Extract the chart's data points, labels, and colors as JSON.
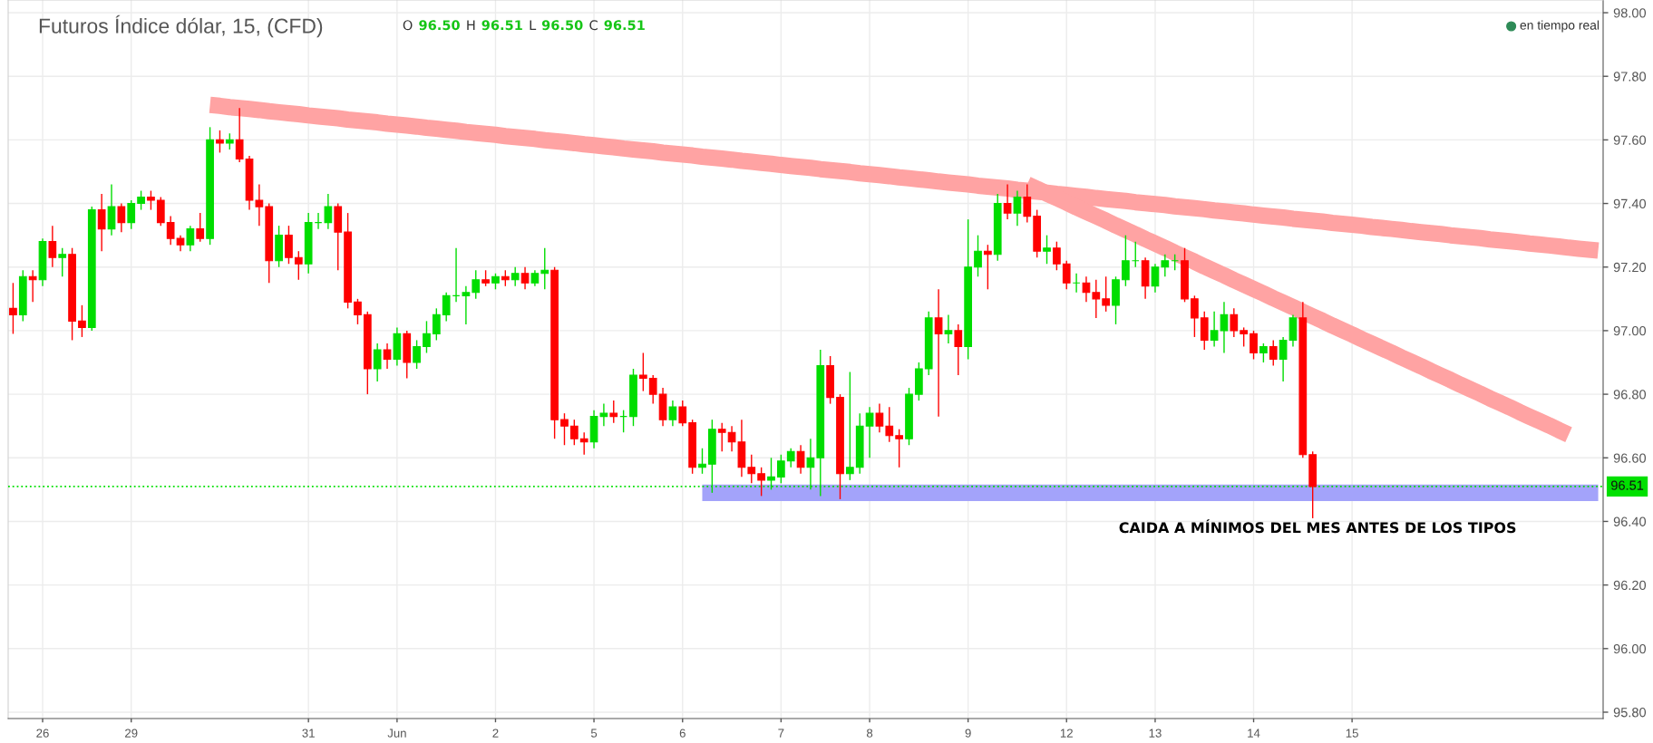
{
  "chart_data": {
    "type": "candlestick",
    "title": "Futuros Índice dólar, 15, (CFD)",
    "categories": [
      null,
      null,
      null,
      "26",
      null,
      null,
      null,
      null,
      null,
      null,
      null,
      null,
      "29",
      null,
      null,
      null,
      null,
      null,
      null,
      null,
      null,
      null,
      null,
      null,
      null,
      null,
      null,
      null,
      null,
      null,
      "31",
      null,
      null,
      null,
      null,
      null,
      null,
      null,
      null,
      "Jun",
      null,
      null,
      null,
      null,
      null,
      null,
      null,
      null,
      null,
      "2",
      null,
      null,
      null,
      null,
      null,
      null,
      null,
      null,
      null,
      "5",
      null,
      null,
      null,
      null,
      null,
      null,
      null,
      null,
      "6",
      null,
      null,
      null,
      null,
      null,
      null,
      null,
      null,
      null,
      "7",
      null,
      null,
      null,
      null,
      null,
      null,
      null,
      null,
      "8",
      null,
      null,
      null,
      null,
      null,
      null,
      null,
      null,
      null,
      "9",
      null,
      null,
      null,
      null,
      null,
      null,
      null,
      null,
      null,
      "12",
      null,
      null,
      null,
      null,
      null,
      null,
      null,
      null,
      "13",
      null,
      null,
      null,
      null,
      null,
      null,
      null,
      null,
      null,
      "14",
      null,
      null,
      null,
      null,
      null,
      null,
      null,
      null,
      null,
      "15",
      null,
      null,
      null,
      null,
      null,
      null,
      null,
      null,
      null,
      null,
      null,
      null,
      null,
      null,
      null,
      null,
      null,
      null,
      null,
      null,
      null,
      null,
      null,
      null,
      null
    ],
    "ohlc": [
      [
        97.07,
        97.15,
        96.99,
        97.05
      ],
      [
        97.05,
        97.19,
        97.03,
        97.17
      ],
      [
        97.17,
        97.19,
        97.09,
        97.16
      ],
      [
        97.16,
        97.29,
        97.14,
        97.28
      ],
      [
        97.28,
        97.33,
        97.2,
        97.23
      ],
      [
        97.23,
        97.26,
        97.17,
        97.24
      ],
      [
        97.24,
        97.26,
        96.97,
        97.03
      ],
      [
        97.03,
        97.08,
        96.98,
        97.01
      ],
      [
        97.01,
        97.39,
        97.0,
        97.38
      ],
      [
        97.38,
        97.43,
        97.25,
        97.32
      ],
      [
        97.32,
        97.46,
        97.3,
        97.39
      ],
      [
        97.39,
        97.4,
        97.31,
        97.34
      ],
      [
        97.34,
        97.41,
        97.32,
        97.4
      ],
      [
        97.4,
        97.44,
        97.38,
        97.42
      ],
      [
        97.42,
        97.44,
        97.38,
        97.41
      ],
      [
        97.41,
        97.42,
        97.33,
        97.34
      ],
      [
        97.34,
        97.36,
        97.27,
        97.29
      ],
      [
        97.29,
        97.3,
        97.25,
        97.27
      ],
      [
        97.27,
        97.33,
        97.25,
        97.32
      ],
      [
        97.32,
        97.37,
        97.28,
        97.29
      ],
      [
        97.29,
        97.64,
        97.27,
        97.6
      ],
      [
        97.6,
        97.63,
        97.56,
        97.59
      ],
      [
        97.59,
        97.62,
        97.57,
        97.6
      ],
      [
        97.6,
        97.7,
        97.53,
        97.54
      ],
      [
        97.54,
        97.55,
        97.38,
        97.41
      ],
      [
        97.41,
        97.46,
        97.33,
        97.39
      ],
      [
        97.39,
        97.4,
        97.15,
        97.22
      ],
      [
        97.22,
        97.33,
        97.2,
        97.3
      ],
      [
        97.3,
        97.33,
        97.21,
        97.23
      ],
      [
        97.23,
        97.25,
        97.16,
        97.21
      ],
      [
        97.21,
        97.37,
        97.18,
        97.34
      ],
      [
        97.34,
        97.37,
        97.32,
        97.34
      ],
      [
        97.34,
        97.43,
        97.32,
        97.39
      ],
      [
        97.39,
        97.4,
        97.19,
        97.31
      ],
      [
        97.31,
        97.37,
        97.07,
        97.09
      ],
      [
        97.09,
        97.1,
        97.02,
        97.05
      ],
      [
        97.05,
        97.06,
        96.8,
        96.88
      ],
      [
        96.88,
        96.96,
        96.84,
        96.94
      ],
      [
        96.94,
        96.96,
        96.88,
        96.91
      ],
      [
        96.91,
        97.01,
        96.89,
        96.99
      ],
      [
        96.99,
        97.0,
        96.85,
        96.9
      ],
      [
        96.9,
        96.97,
        96.88,
        96.95
      ],
      [
        96.95,
        97.03,
        96.93,
        96.99
      ],
      [
        96.99,
        97.07,
        96.97,
        97.05
      ],
      [
        97.05,
        97.12,
        97.03,
        97.11
      ],
      [
        97.11,
        97.26,
        97.09,
        97.11
      ],
      [
        97.11,
        97.14,
        97.02,
        97.12
      ],
      [
        97.12,
        97.19,
        97.1,
        97.16
      ],
      [
        97.16,
        97.19,
        97.14,
        97.15
      ],
      [
        97.15,
        97.18,
        97.13,
        97.17
      ],
      [
        97.17,
        97.19,
        97.14,
        97.16
      ],
      [
        97.16,
        97.2,
        97.14,
        97.18
      ],
      [
        97.18,
        97.2,
        97.13,
        97.15
      ],
      [
        97.15,
        97.19,
        97.14,
        97.18
      ],
      [
        97.18,
        97.26,
        97.13,
        97.19
      ],
      [
        97.19,
        97.2,
        96.66,
        96.72
      ],
      [
        96.72,
        96.74,
        96.64,
        96.7
      ],
      [
        96.7,
        96.72,
        96.64,
        96.66
      ],
      [
        96.66,
        96.68,
        96.61,
        96.65
      ],
      [
        96.65,
        96.75,
        96.63,
        96.73
      ],
      [
        96.73,
        96.77,
        96.7,
        96.74
      ],
      [
        96.74,
        96.78,
        96.71,
        96.73
      ],
      [
        96.73,
        96.75,
        96.68,
        96.73
      ],
      [
        96.73,
        96.88,
        96.7,
        96.86
      ],
      [
        96.86,
        96.93,
        96.81,
        96.85
      ],
      [
        96.85,
        96.86,
        96.77,
        96.8
      ],
      [
        96.8,
        96.82,
        96.7,
        96.72
      ],
      [
        96.72,
        96.78,
        96.7,
        96.76
      ],
      [
        96.76,
        96.78,
        96.7,
        96.71
      ],
      [
        96.71,
        96.72,
        96.55,
        96.57
      ],
      [
        96.57,
        96.63,
        96.55,
        96.58
      ],
      [
        96.58,
        96.72,
        96.49,
        96.69
      ],
      [
        96.69,
        96.71,
        96.62,
        96.68
      ],
      [
        96.68,
        96.7,
        96.62,
        96.65
      ],
      [
        96.65,
        96.72,
        96.54,
        96.57
      ],
      [
        96.57,
        96.61,
        96.52,
        96.55
      ],
      [
        96.55,
        96.57,
        96.48,
        96.53
      ],
      [
        96.53,
        96.6,
        96.5,
        96.54
      ],
      [
        96.54,
        96.61,
        96.52,
        96.59
      ],
      [
        96.59,
        96.63,
        96.57,
        96.62
      ],
      [
        96.62,
        96.64,
        96.55,
        96.57
      ],
      [
        96.57,
        96.66,
        96.5,
        96.6
      ],
      [
        96.6,
        96.94,
        96.48,
        96.89
      ],
      [
        96.89,
        96.92,
        96.77,
        96.79
      ],
      [
        96.79,
        96.8,
        96.47,
        96.55
      ],
      [
        96.55,
        96.87,
        96.53,
        96.57
      ],
      [
        96.57,
        96.74,
        96.55,
        96.7
      ],
      [
        96.7,
        96.76,
        96.6,
        96.74
      ],
      [
        96.74,
        96.77,
        96.68,
        96.7
      ],
      [
        96.7,
        96.76,
        96.65,
        96.67
      ],
      [
        96.67,
        96.69,
        96.57,
        96.66
      ],
      [
        96.66,
        96.82,
        96.64,
        96.8
      ],
      [
        96.8,
        96.9,
        96.78,
        96.88
      ],
      [
        96.88,
        97.06,
        96.86,
        97.04
      ],
      [
        97.04,
        97.13,
        96.73,
        96.99
      ],
      [
        96.99,
        97.05,
        96.96,
        97.0
      ],
      [
        97.0,
        97.02,
        96.86,
        96.95
      ],
      [
        96.95,
        97.35,
        96.91,
        97.2
      ],
      [
        97.2,
        97.3,
        97.17,
        97.25
      ],
      [
        97.25,
        97.27,
        97.13,
        97.24
      ],
      [
        97.24,
        97.43,
        97.22,
        97.4
      ],
      [
        97.4,
        97.46,
        97.35,
        97.37
      ],
      [
        97.37,
        97.44,
        97.33,
        97.42
      ],
      [
        97.42,
        97.46,
        97.34,
        97.36
      ],
      [
        97.36,
        97.38,
        97.23,
        97.25
      ],
      [
        97.25,
        97.3,
        97.21,
        97.26
      ],
      [
        97.26,
        97.28,
        97.19,
        97.21
      ],
      [
        97.21,
        97.22,
        97.13,
        97.15
      ],
      [
        97.15,
        97.18,
        97.12,
        97.15
      ],
      [
        97.15,
        97.17,
        97.09,
        97.12
      ],
      [
        97.12,
        97.16,
        97.04,
        97.1
      ],
      [
        97.1,
        97.17,
        97.06,
        97.08
      ],
      [
        97.08,
        97.17,
        97.02,
        97.16
      ],
      [
        97.16,
        97.3,
        97.14,
        97.22
      ],
      [
        97.22,
        97.28,
        97.2,
        97.22
      ],
      [
        97.22,
        97.23,
        97.1,
        97.14
      ],
      [
        97.14,
        97.21,
        97.12,
        97.2
      ],
      [
        97.2,
        97.24,
        97.17,
        97.22
      ],
      [
        97.22,
        97.24,
        97.19,
        97.22
      ],
      [
        97.22,
        97.26,
        97.09,
        97.1
      ],
      [
        97.1,
        97.11,
        96.98,
        97.04
      ],
      [
        97.04,
        97.06,
        96.94,
        96.97
      ],
      [
        96.97,
        97.06,
        96.95,
        97.0
      ],
      [
        97.0,
        97.09,
        96.93,
        97.05
      ],
      [
        97.05,
        97.07,
        96.98,
        97.0
      ],
      [
        97.0,
        97.01,
        96.95,
        96.99
      ],
      [
        96.99,
        97.0,
        96.91,
        96.93
      ],
      [
        96.93,
        96.96,
        96.9,
        96.95
      ],
      [
        96.95,
        96.97,
        96.89,
        96.91
      ],
      [
        96.91,
        96.98,
        96.84,
        96.97
      ],
      [
        96.97,
        97.05,
        96.95,
        97.04
      ],
      [
        97.04,
        97.09,
        96.6,
        96.61
      ],
      [
        96.61,
        96.62,
        96.41,
        96.51
      ],
      null,
      null,
      null,
      null,
      null,
      null,
      null,
      null,
      null,
      null,
      null,
      null,
      null,
      null,
      null,
      null,
      null,
      null,
      null,
      null,
      null,
      null,
      null,
      null,
      null,
      null,
      null,
      null,
      null
    ],
    "colors": [
      "#ff0000",
      "#00dd00",
      "#ff0000",
      "#00dd00",
      "#ff0000",
      "#00dd00",
      "#ff0000",
      "#ff0000",
      "#00dd00",
      "#ff0000",
      "#00dd00",
      "#ff0000",
      "#00dd00",
      "#00dd00",
      "#ff0000",
      "#ff0000",
      "#ff0000",
      "#ff0000",
      "#00dd00",
      "#ff0000",
      "#00dd00",
      "#ff0000",
      "#00dd00",
      "#ff0000",
      "#ff0000",
      "#ff0000",
      "#ff0000",
      "#00dd00",
      "#ff0000",
      "#ff0000",
      "#00dd00",
      "#00dd00",
      "#00dd00",
      "#ff0000",
      "#ff0000",
      "#ff0000",
      "#ff0000",
      "#00dd00",
      "#ff0000",
      "#00dd00",
      "#ff0000",
      "#00dd00",
      "#00dd00",
      "#00dd00",
      "#00dd00",
      "#00dd00",
      "#00dd00",
      "#00dd00",
      "#ff0000",
      "#00dd00",
      "#ff0000",
      "#00dd00",
      "#ff0000",
      "#00dd00",
      "#00dd00",
      "#ff0000",
      "#ff0000",
      "#ff0000",
      "#ff0000",
      "#00dd00",
      "#00dd00",
      "#ff0000",
      "#00dd00",
      "#00dd00",
      "#ff0000",
      "#ff0000",
      "#ff0000",
      "#00dd00",
      "#ff0000",
      "#ff0000",
      "#00dd00",
      "#00dd00",
      "#ff0000",
      "#ff0000",
      "#ff0000",
      "#ff0000",
      "#ff0000",
      "#00dd00",
      "#00dd00",
      "#00dd00",
      "#ff0000",
      "#00dd00",
      "#00dd00",
      "#ff0000",
      "#ff0000",
      "#00dd00",
      "#00dd00",
      "#00dd00",
      "#ff0000",
      "#ff0000",
      "#ff0000",
      "#00dd00",
      "#00dd00",
      "#00dd00",
      "#ff0000",
      "#00dd00",
      "#ff0000",
      "#00dd00",
      "#00dd00",
      "#ff0000",
      "#00dd00",
      "#ff0000",
      "#00dd00",
      "#ff0000",
      "#ff0000",
      "#00dd00",
      "#ff0000",
      "#ff0000",
      "#00dd00",
      "#ff0000",
      "#ff0000",
      "#ff0000",
      "#00dd00",
      "#00dd00",
      "#00dd00",
      "#ff0000",
      "#00dd00",
      "#00dd00",
      "#00dd00",
      "#ff0000",
      "#ff0000",
      "#ff0000",
      "#00dd00",
      "#00dd00",
      "#ff0000",
      "#ff0000",
      "#ff0000",
      "#00dd00",
      "#ff0000",
      "#00dd00",
      "#00dd00",
      "#ff0000",
      "#ff0000",
      null,
      null,
      null,
      null,
      null,
      null,
      null,
      null,
      null,
      null,
      null,
      null,
      null,
      null,
      null,
      null,
      null,
      null,
      null,
      null,
      null,
      null,
      null,
      null,
      null,
      null,
      null,
      null,
      null
    ],
    "series": [
      {
        "type": "line",
        "color": "#ffa3a3",
        "values": [
          null,
          null,
          null,
          null,
          null,
          null,
          null,
          null,
          null,
          null,
          null,
          null,
          null,
          null,
          null,
          null,
          null,
          null,
          null,
          null,
          97.71,
          97.707,
          97.703,
          97.7,
          97.697,
          97.694,
          97.69,
          97.687,
          97.684,
          97.681,
          97.677,
          97.674,
          97.671,
          97.668,
          97.664,
          97.661,
          97.658,
          97.655,
          97.651,
          97.648,
          97.645,
          97.642,
          97.638,
          97.635,
          97.632,
          97.629,
          97.625,
          97.622,
          97.619,
          97.616,
          97.612,
          97.609,
          97.606,
          97.603,
          97.599,
          97.596,
          97.593,
          97.59,
          97.586,
          97.583,
          97.58,
          97.577,
          97.573,
          97.57,
          97.567,
          97.564,
          97.56,
          97.557,
          97.554,
          97.551,
          97.547,
          97.544,
          97.541,
          97.538,
          97.534,
          97.531,
          97.528,
          97.525,
          97.521,
          97.518,
          97.515,
          97.512,
          97.508,
          97.505,
          97.502,
          97.499,
          97.495,
          97.492,
          97.489,
          97.486,
          97.482,
          97.479,
          97.476,
          97.473,
          97.469,
          97.466,
          97.463,
          97.46,
          97.456,
          97.453,
          97.45,
          97.447,
          97.443,
          97.44,
          97.437,
          97.434,
          97.43,
          97.427,
          97.424,
          97.421,
          97.417,
          97.414,
          97.411,
          97.408,
          97.404,
          97.401,
          97.398,
          97.395,
          97.391,
          97.388,
          97.385,
          97.382,
          97.378,
          97.375,
          97.372,
          97.369,
          97.365,
          97.362,
          97.359,
          97.356,
          97.352,
          97.349,
          97.346,
          97.343,
          97.339,
          97.336,
          97.333,
          97.33,
          97.326,
          97.323,
          97.32,
          97.317,
          97.313,
          97.31,
          97.307,
          97.304,
          97.3,
          97.297,
          97.294,
          97.291,
          97.287,
          97.284,
          97.281,
          97.278,
          97.274,
          97.271,
          97.268,
          97.265,
          97.261,
          97.258,
          97.255,
          97.252
        ]
      },
      {
        "type": "line",
        "color": "#ffa3a3",
        "values": [
          null,
          null,
          null,
          null,
          null,
          null,
          null,
          null,
          null,
          null,
          null,
          null,
          null,
          null,
          null,
          null,
          null,
          null,
          null,
          null,
          null,
          null,
          null,
          null,
          null,
          null,
          null,
          null,
          null,
          null,
          null,
          null,
          null,
          null,
          null,
          null,
          null,
          null,
          null,
          null,
          null,
          null,
          null,
          null,
          null,
          null,
          null,
          null,
          null,
          null,
          null,
          null,
          null,
          null,
          null,
          null,
          null,
          null,
          null,
          null,
          null,
          null,
          null,
          null,
          null,
          null,
          null,
          null,
          null,
          null,
          null,
          null,
          null,
          null,
          null,
          null,
          null,
          null,
          null,
          null,
          null,
          null,
          null,
          null,
          null,
          null,
          null,
          null,
          null,
          null,
          null,
          null,
          null,
          null,
          null,
          null,
          null,
          null,
          null,
          null,
          null,
          null,
          null,
          97.46,
          97.446,
          97.431,
          97.417,
          97.403,
          97.388,
          97.374,
          97.36,
          97.346,
          97.331,
          97.317,
          97.303,
          97.288,
          97.274,
          97.26,
          97.245,
          97.231,
          97.217,
          97.202,
          97.188,
          97.174,
          97.159,
          97.145,
          97.131,
          97.117,
          97.102,
          97.088,
          97.074,
          97.059,
          97.045,
          97.031,
          97.016,
          97.002,
          96.988,
          96.973,
          96.959,
          96.945,
          96.931,
          96.916,
          96.902,
          96.888,
          96.873,
          96.859,
          96.845,
          96.83,
          96.816,
          96.802,
          96.787,
          96.773,
          96.759,
          96.744,
          96.73,
          96.716,
          96.702,
          96.687,
          96.673,
          null,
          null,
          null
        ]
      },
      {
        "type": "line",
        "color": "#a3a3fa",
        "values": [
          null,
          null,
          null,
          null,
          null,
          null,
          null,
          null,
          null,
          null,
          null,
          null,
          null,
          null,
          null,
          null,
          null,
          null,
          null,
          null,
          null,
          null,
          null,
          null,
          null,
          null,
          null,
          null,
          null,
          null,
          null,
          null,
          null,
          null,
          null,
          null,
          null,
          null,
          null,
          null,
          null,
          null,
          null,
          null,
          null,
          null,
          null,
          null,
          null,
          null,
          null,
          null,
          null,
          null,
          null,
          null,
          null,
          null,
          null,
          null,
          null,
          null,
          null,
          null,
          null,
          null,
          null,
          null,
          null,
          null,
          96.49,
          96.49,
          96.49,
          96.49,
          96.49,
          96.49,
          96.49,
          96.49,
          96.49,
          96.49,
          96.49,
          96.49,
          96.49,
          96.49,
          96.49,
          96.49,
          96.49,
          96.49,
          96.49,
          96.49,
          96.49,
          96.49,
          96.49,
          96.49,
          96.49,
          96.49,
          96.49,
          96.49,
          96.49,
          96.49,
          96.49,
          96.49,
          96.49,
          96.49,
          96.49,
          96.49,
          96.49,
          96.49,
          96.49,
          96.49,
          96.49,
          96.49,
          96.49,
          96.49,
          96.49,
          96.49,
          96.49,
          96.49,
          96.49,
          96.49,
          96.49,
          96.49,
          96.49,
          96.49,
          96.49,
          96.49,
          96.49,
          96.49,
          96.49,
          96.49,
          96.49,
          96.49,
          96.49,
          96.49,
          96.49,
          96.49,
          96.49,
          96.49,
          96.49,
          96.49,
          96.49,
          96.49,
          96.49,
          96.49,
          96.49,
          96.49,
          96.49,
          96.49,
          96.49,
          96.49,
          96.49,
          96.49,
          96.49,
          96.49,
          96.49,
          96.49,
          96.49,
          96.49,
          96.49,
          96.49,
          96.49,
          96.49
        ]
      }
    ],
    "ref_lines": [
      {
        "axis": "y",
        "value": 96.51,
        "label": "96.51",
        "color": "#00e000",
        "line_style": "dotted"
      }
    ],
    "annotations": [
      "O 96.50 H 96.51 L 96.50 C 96.51",
      "en tiempo real",
      "CAIDA A MÍNIMOS DEL MES ANTES DE LOS TIPOS"
    ],
    "ylim": [
      95.78,
      98.04
    ],
    "yticks": [
      {
        "value": 95.8,
        "label": "95.80"
      },
      {
        "value": 96.0,
        "label": "96.00"
      },
      {
        "value": 96.2,
        "label": "96.20"
      },
      {
        "value": 96.4,
        "label": "96.40"
      },
      {
        "value": 96.6,
        "label": "96.60"
      },
      {
        "value": 96.8,
        "label": "96.80"
      },
      {
        "value": 97.0,
        "label": "97.00"
      },
      {
        "value": 97.2,
        "label": "97.20"
      },
      {
        "value": 97.4,
        "label": "97.40"
      },
      {
        "value": 97.6,
        "label": "97.60"
      },
      {
        "value": 97.8,
        "label": "97.80"
      },
      {
        "value": 98.0,
        "label": "98.00"
      }
    ],
    "grid": true
  }
}
